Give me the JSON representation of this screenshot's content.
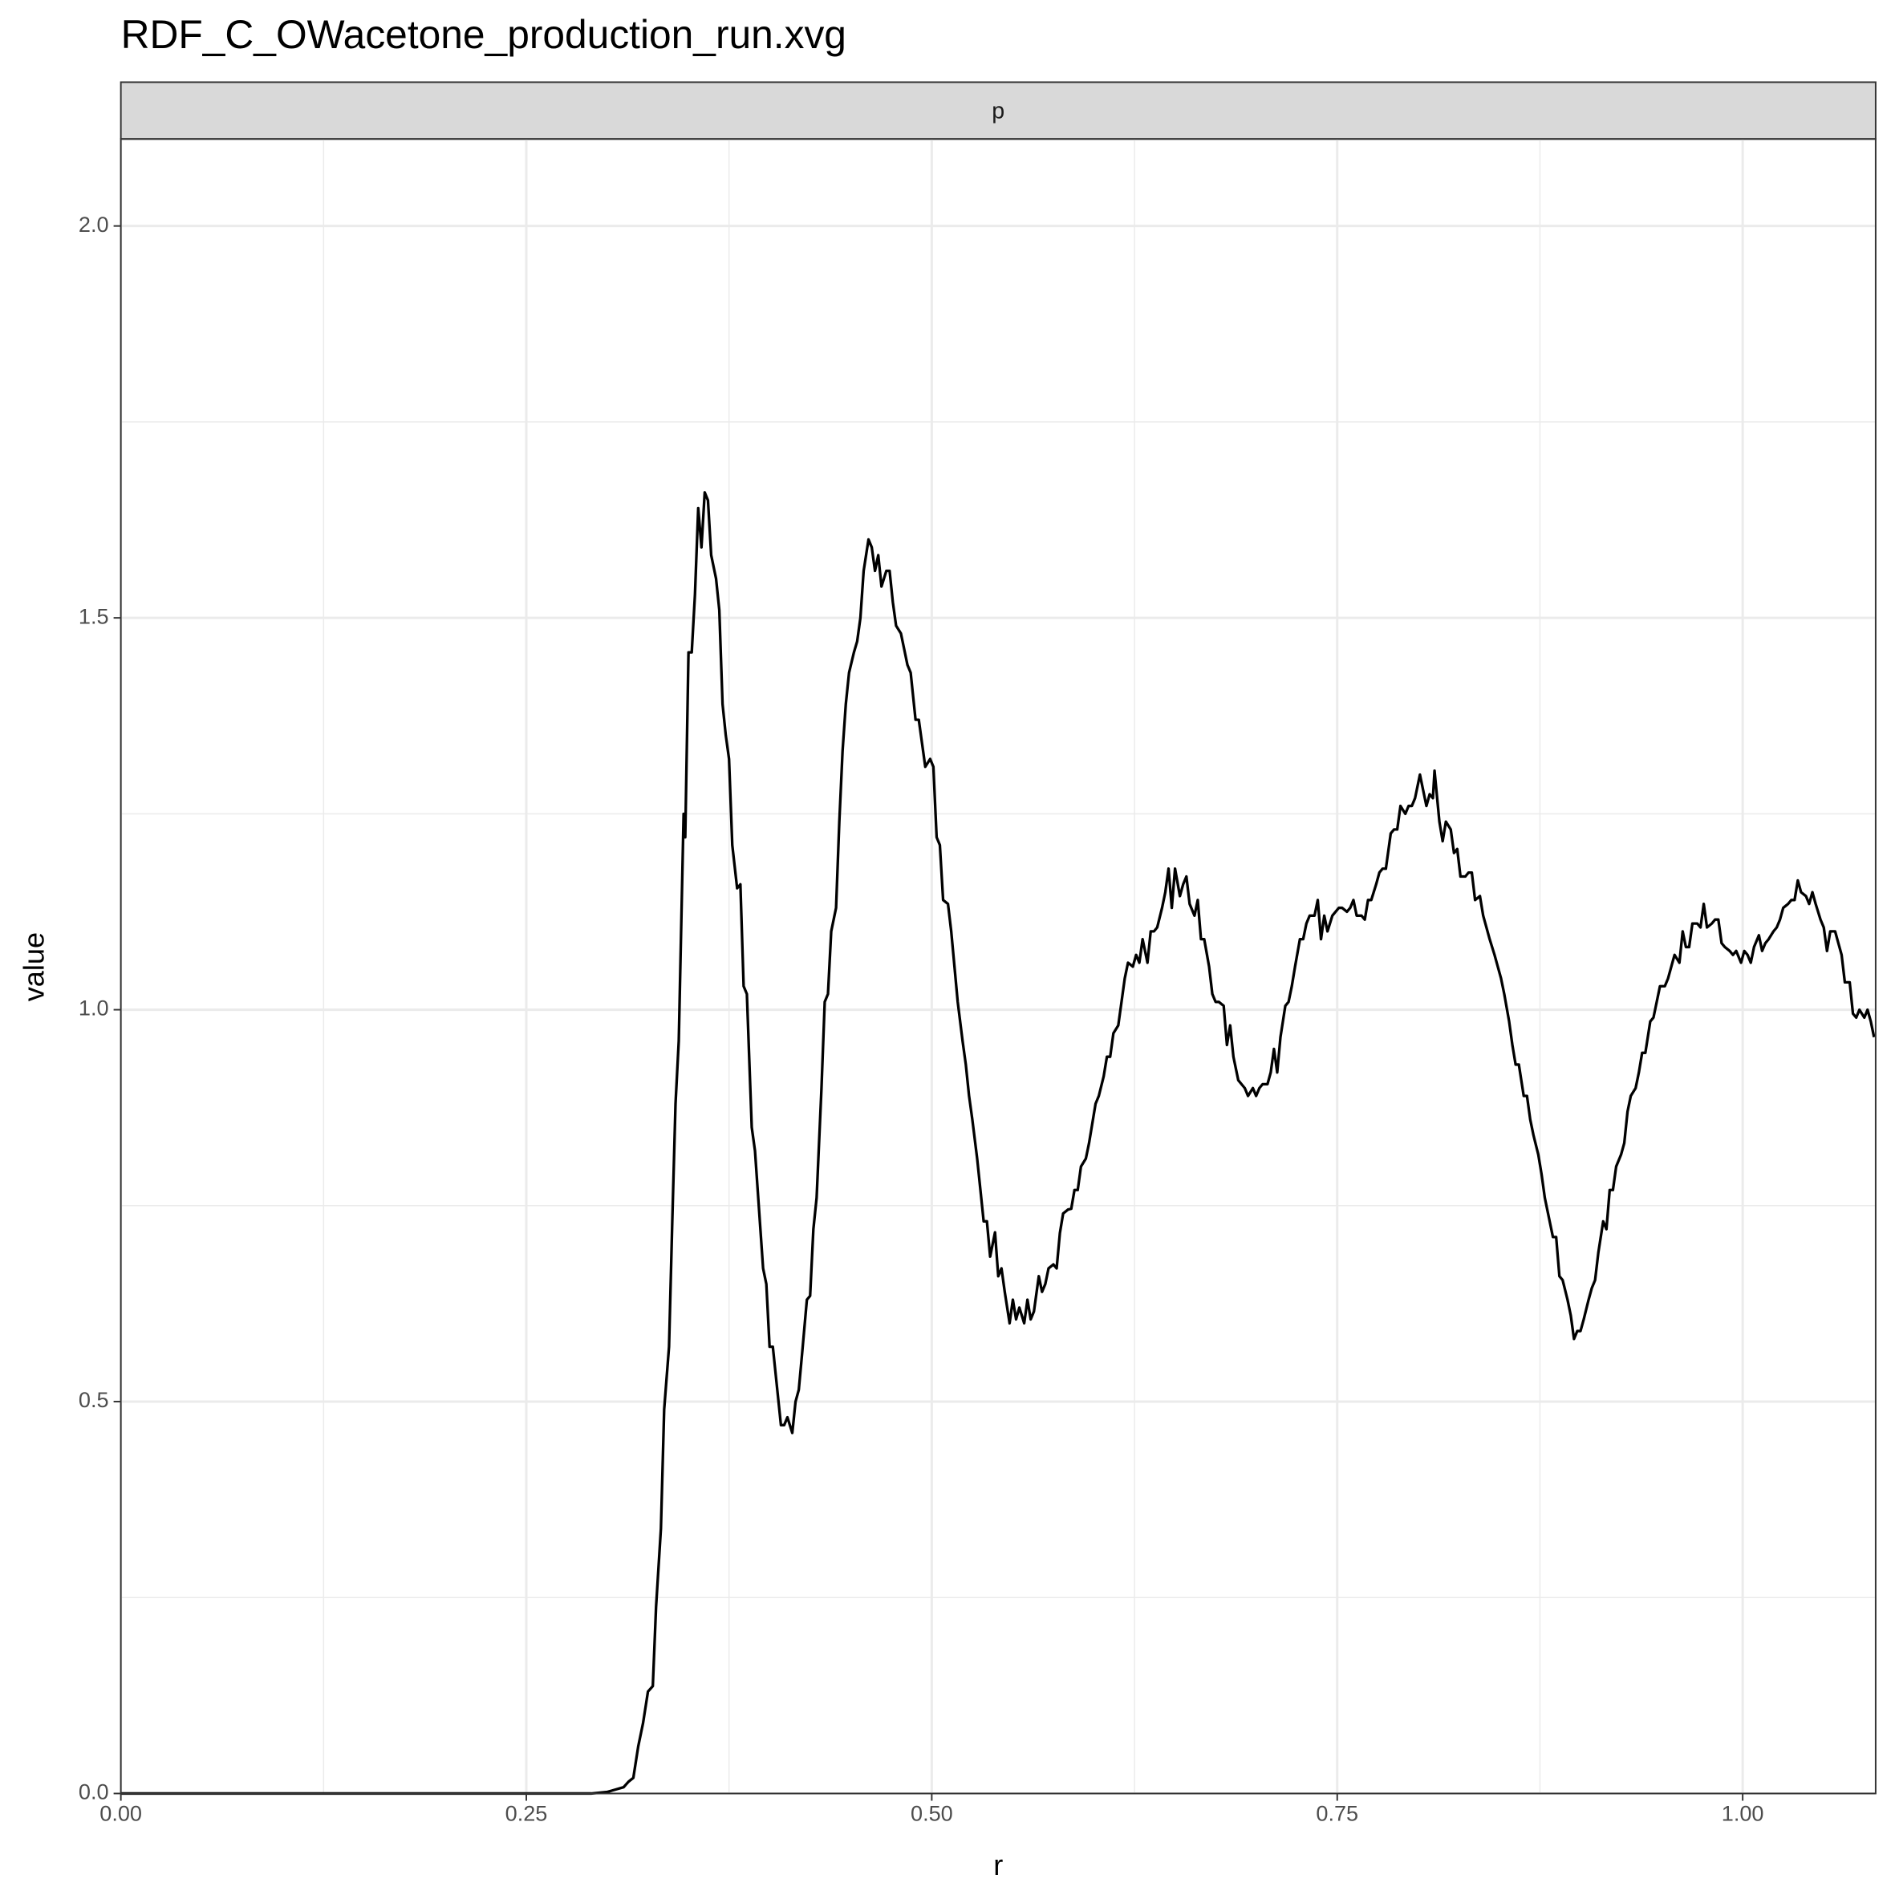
{
  "chart_data": {
    "type": "line",
    "title": "RDF_C_OWacetone_production_run.xvg",
    "facet": "p",
    "xlabel": "r",
    "ylabel": "value",
    "color": "#000000",
    "grid": true,
    "xlim": [
      0,
      1.082
    ],
    "ylim": [
      0,
      2.111
    ],
    "xticks": [
      {
        "value": 0,
        "label": "0.00"
      },
      {
        "value": 0.25,
        "label": "0.25"
      },
      {
        "value": 0.5,
        "label": "0.50"
      },
      {
        "value": 0.75,
        "label": "0.75"
      },
      {
        "value": 1,
        "label": "1.00"
      }
    ],
    "yticks": [
      {
        "value": 0,
        "label": "0.0"
      },
      {
        "value": 0.5,
        "label": "0.5"
      },
      {
        "value": 1,
        "label": "1.0"
      },
      {
        "value": 1.5,
        "label": "1.5"
      },
      {
        "value": 2,
        "label": "2.0"
      }
    ],
    "xminor": [
      0.125,
      0.375,
      0.625,
      0.875
    ],
    "yminor": [
      0.25,
      0.75,
      1.25,
      1.75
    ],
    "x": [
      0,
      0.29,
      0.3,
      0.305,
      0.31,
      0.313,
      0.316,
      0.319,
      0.322,
      0.325,
      0.328,
      0.33,
      0.333,
      0.335,
      0.338,
      0.34,
      0.342,
      0.344,
      0.347,
      0.348,
      0.35,
      0.352,
      0.354,
      0.356,
      0.358,
      0.36,
      0.362,
      0.364,
      0.367,
      0.369,
      0.371,
      0.373,
      0.375,
      0.377,
      0.38,
      0.382,
      0.384,
      0.386,
      0.389,
      0.391,
      0.393,
      0.396,
      0.398,
      0.4,
      0.402,
      0.405,
      0.407,
      0.409,
      0.411,
      0.414,
      0.416,
      0.418,
      0.42,
      0.423,
      0.425,
      0.427,
      0.429,
      0.432,
      0.434,
      0.436,
      0.438,
      0.441,
      0.443,
      0.445,
      0.447,
      0.449,
      0.452,
      0.454,
      0.456,
      0.458,
      0.461,
      0.463,
      0.465,
      0.467,
      0.469,
      0.472,
      0.474,
      0.476,
      0.478,
      0.481,
      0.483,
      0.485,
      0.487,
      0.49,
      0.492,
      0.494,
      0.496,
      0.499,
      0.501,
      0.503,
      0.505,
      0.507,
      0.51,
      0.512,
      0.514,
      0.516,
      0.519,
      0.521,
      0.523,
      0.525,
      0.528,
      0.53,
      0.532,
      0.534,
      0.536,
      0.539,
      0.541,
      0.543,
      0.545,
      0.548,
      0.55,
      0.552,
      0.554,
      0.557,
      0.559,
      0.561,
      0.563,
      0.566,
      0.568,
      0.57,
      0.572,
      0.575,
      0.577,
      0.579,
      0.581,
      0.584,
      0.586,
      0.588,
      0.59,
      0.592,
      0.595,
      0.597,
      0.599,
      0.601,
      0.603,
      0.606,
      0.608,
      0.61,
      0.612,
      0.615,
      0.617,
      0.619,
      0.621,
      0.624,
      0.626,
      0.628,
      0.63,
      0.633,
      0.635,
      0.637,
      0.639,
      0.642,
      0.644,
      0.646,
      0.648,
      0.65,
      0.653,
      0.655,
      0.657,
      0.659,
      0.662,
      0.664,
      0.666,
      0.668,
      0.671,
      0.673,
      0.675,
      0.677,
      0.68,
      0.682,
      0.684,
      0.686,
      0.689,
      0.691,
      0.693,
      0.695,
      0.698,
      0.7,
      0.702,
      0.704,
      0.707,
      0.709,
      0.711,
      0.713,
      0.715,
      0.718,
      0.72,
      0.722,
      0.724,
      0.727,
      0.729,
      0.731,
      0.733,
      0.736,
      0.738,
      0.74,
      0.742,
      0.744,
      0.747,
      0.749,
      0.751,
      0.753,
      0.756,
      0.758,
      0.76,
      0.762,
      0.765,
      0.767,
      0.769,
      0.771,
      0.774,
      0.776,
      0.778,
      0.78,
      0.783,
      0.785,
      0.787,
      0.789,
      0.792,
      0.794,
      0.796,
      0.798,
      0.801,
      0.803,
      0.805,
      0.807,
      0.809,
      0.81,
      0.813,
      0.815,
      0.817,
      0.82,
      0.822,
      0.824,
      0.826,
      0.829,
      0.831,
      0.833,
      0.835,
      0.838,
      0.84,
      0.842,
      0.844,
      0.847,
      0.849,
      0.851,
      0.853,
      0.856,
      0.858,
      0.86,
      0.862,
      0.865,
      0.867,
      0.869,
      0.871,
      0.874,
      0.876,
      0.878,
      0.88,
      0.883,
      0.885,
      0.887,
      0.889,
      0.892,
      0.894,
      0.896,
      0.898,
      0.9,
      0.902,
      0.905,
      0.907,
      0.909,
      0.911,
      0.914,
      0.916,
      0.918,
      0.92,
      0.922,
      0.925,
      0.927,
      0.929,
      0.931,
      0.934,
      0.936,
      0.938,
      0.94,
      0.943,
      0.945,
      0.947,
      0.949,
      0.952,
      0.954,
      0.956,
      0.958,
      0.961,
      0.963,
      0.965,
      0.967,
      0.969,
      0.972,
      0.974,
      0.976,
      0.978,
      0.981,
      0.983,
      0.985,
      0.987,
      0.989,
      0.992,
      0.994,
      0.996,
      0.999,
      1.001,
      1.003,
      1.005,
      1.007,
      1.01,
      1.012,
      1.014,
      1.016,
      1.019,
      1.021,
      1.023,
      1.025,
      1.028,
      1.03,
      1.032,
      1.034,
      1.036,
      1.039,
      1.041,
      1.043,
      1.045,
      1.048,
      1.05,
      1.052,
      1.054,
      1.057,
      1.059,
      1.061,
      1.063,
      1.066,
      1.068,
      1.07,
      1.072,
      1.075,
      1.077,
      1.079,
      1.081
    ],
    "values": [
      0,
      0,
      0.002,
      0.005,
      0.008,
      0.015,
      0.02,
      0.06,
      0.09,
      0.13,
      0.137,
      0.238,
      0.338,
      0.49,
      0.57,
      0.73,
      0.88,
      0.96,
      1.25,
      1.22,
      1.456,
      1.456,
      1.53,
      1.64,
      1.59,
      1.66,
      1.65,
      1.58,
      1.55,
      1.51,
      1.39,
      1.35,
      1.32,
      1.21,
      1.155,
      1.16,
      1.03,
      1.02,
      0.85,
      0.82,
      0.76,
      0.67,
      0.65,
      0.57,
      0.57,
      0.51,
      0.47,
      0.47,
      0.48,
      0.46,
      0.5,
      0.515,
      0.56,
      0.63,
      0.635,
      0.72,
      0.76,
      0.9,
      1.01,
      1.02,
      1.1,
      1.13,
      1.24,
      1.33,
      1.39,
      1.43,
      1.456,
      1.47,
      1.5,
      1.56,
      1.6,
      1.59,
      1.56,
      1.58,
      1.54,
      1.56,
      1.56,
      1.52,
      1.49,
      1.48,
      1.46,
      1.44,
      1.43,
      1.37,
      1.37,
      1.34,
      1.31,
      1.32,
      1.31,
      1.22,
      1.21,
      1.14,
      1.135,
      1.1,
      1.055,
      1.01,
      0.96,
      0.93,
      0.89,
      0.86,
      0.81,
      0.77,
      0.73,
      0.73,
      0.685,
      0.716,
      0.66,
      0.67,
      0.64,
      0.6,
      0.63,
      0.605,
      0.62,
      0.6,
      0.63,
      0.605,
      0.615,
      0.66,
      0.64,
      0.65,
      0.67,
      0.675,
      0.67,
      0.715,
      0.74,
      0.745,
      0.746,
      0.77,
      0.77,
      0.8,
      0.81,
      0.83,
      0.855,
      0.88,
      0.89,
      0.915,
      0.94,
      0.94,
      0.97,
      0.98,
      1.01,
      1.04,
      1.06,
      1.055,
      1.07,
      1.06,
      1.09,
      1.06,
      1.1,
      1.1,
      1.105,
      1.13,
      1.15,
      1.18,
      1.13,
      1.18,
      1.145,
      1.16,
      1.17,
      1.135,
      1.12,
      1.14,
      1.09,
      1.09,
      1.055,
      1.02,
      1.01,
      1.01,
      1.005,
      0.955,
      0.98,
      0.94,
      0.91,
      0.905,
      0.9,
      0.89,
      0.9,
      0.89,
      0.9,
      0.905,
      0.905,
      0.92,
      0.95,
      0.92,
      0.965,
      1.005,
      1.01,
      1.03,
      1.055,
      1.09,
      1.09,
      1.11,
      1.12,
      1.12,
      1.14,
      1.09,
      1.12,
      1.1,
      1.12,
      1.125,
      1.13,
      1.13,
      1.125,
      1.13,
      1.14,
      1.12,
      1.12,
      1.115,
      1.14,
      1.14,
      1.16,
      1.175,
      1.18,
      1.18,
      1.225,
      1.23,
      1.23,
      1.26,
      1.25,
      1.26,
      1.26,
      1.27,
      1.3,
      1.28,
      1.26,
      1.275,
      1.27,
      1.305,
      1.24,
      1.215,
      1.24,
      1.23,
      1.2,
      1.205,
      1.17,
      1.17,
      1.175,
      1.175,
      1.14,
      1.145,
      1.12,
      1.105,
      1.09,
      1.07,
      1.055,
      1.04,
      1.02,
      0.985,
      0.955,
      0.93,
      0.93,
      0.89,
      0.89,
      0.86,
      0.84,
      0.815,
      0.79,
      0.76,
      0.74,
      0.71,
      0.71,
      0.66,
      0.655,
      0.63,
      0.61,
      0.58,
      0.59,
      0.59,
      0.605,
      0.63,
      0.645,
      0.655,
      0.69,
      0.73,
      0.72,
      0.77,
      0.77,
      0.8,
      0.815,
      0.83,
      0.87,
      0.89,
      0.9,
      0.92,
      0.945,
      0.945,
      0.985,
      0.99,
      1.01,
      1.03,
      1.03,
      1.04,
      1.055,
      1.07,
      1.06,
      1.1,
      1.08,
      1.08,
      1.11,
      1.11,
      1.105,
      1.135,
      1.105,
      1.11,
      1.115,
      1.115,
      1.085,
      1.08,
      1.075,
      1.07,
      1.075,
      1.06,
      1.075,
      1.07,
      1.06,
      1.08,
      1.095,
      1.075,
      1.085,
      1.09,
      1.1,
      1.105,
      1.115,
      1.13,
      1.135,
      1.14,
      1.14,
      1.165,
      1.15,
      1.145,
      1.135,
      1.15,
      1.135,
      1.115,
      1.105,
      1.075,
      1.1,
      1.1,
      1.085,
      1.07,
      1.035,
      1.035,
      0.995,
      0.99,
      1,
      0.99,
      1,
      0.985,
      0.965
    ]
  }
}
